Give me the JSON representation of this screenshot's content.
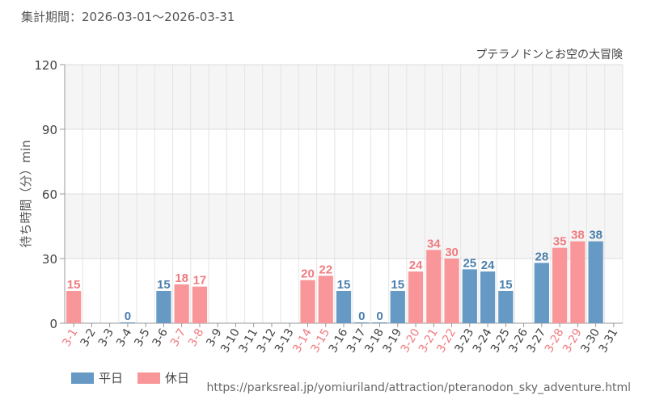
{
  "header": {
    "period": "集計期間：2026-03-01～2026-03-31"
  },
  "source_url": "https://parksreal.jp/yomiuriland/attraction/pteranodon_sky_adventure.html",
  "legend": {
    "weekday": "平日",
    "holiday": "休日"
  },
  "colors": {
    "weekday": "#6699c3",
    "holiday": "#f9969a",
    "weekday_text": "#4a7fac",
    "holiday_text": "#f07b80"
  },
  "chart_data": {
    "type": "bar",
    "title": "プテラノドンとお空の大冒険",
    "ylabel": "待ち時間（分）min",
    "xlabel": "",
    "ylim": [
      0,
      120
    ],
    "yticks": [
      "0",
      "30",
      "60",
      "90",
      "120"
    ],
    "grid": true,
    "legend_position": "bottom-left",
    "categories": [
      "3-1",
      "3-2",
      "3-3",
      "3-4",
      "3-5",
      "3-6",
      "3-7",
      "3-8",
      "3-9",
      "3-10",
      "3-11",
      "3-12",
      "3-13",
      "3-14",
      "3-15",
      "3-16",
      "3-17",
      "3-18",
      "3-19",
      "3-20",
      "3-21",
      "3-22",
      "3-23",
      "3-24",
      "3-25",
      "3-26",
      "3-27",
      "3-28",
      "3-29",
      "3-30",
      "3-31"
    ],
    "day_type": [
      "holiday",
      "weekday",
      "weekday",
      "weekday",
      "weekday",
      "weekday",
      "holiday",
      "holiday",
      "weekday",
      "weekday",
      "weekday",
      "weekday",
      "weekday",
      "holiday",
      "holiday",
      "weekday",
      "weekday",
      "weekday",
      "weekday",
      "holiday",
      "holiday",
      "holiday",
      "weekday",
      "weekday",
      "weekday",
      "weekday",
      "weekday",
      "holiday",
      "holiday",
      "weekday",
      "weekday"
    ],
    "values": [
      15,
      null,
      null,
      0,
      null,
      15,
      18,
      17,
      null,
      null,
      null,
      null,
      null,
      20,
      22,
      15,
      0,
      0,
      15,
      24,
      34,
      30,
      25,
      24,
      15,
      null,
      28,
      35,
      38,
      38,
      null
    ]
  }
}
